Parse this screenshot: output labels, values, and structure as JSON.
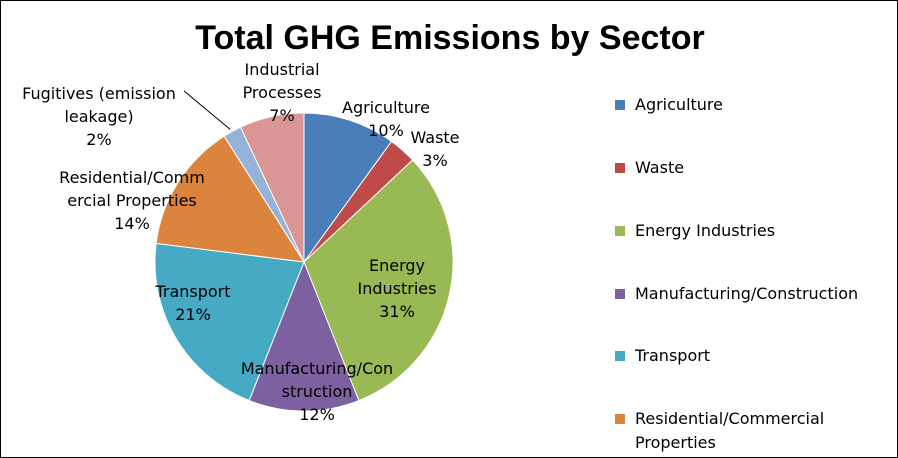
{
  "chart_data": {
    "type": "pie",
    "title": "Total GHG Emissions by Sector",
    "slices": [
      {
        "name": "Agriculture",
        "value": 10,
        "label_lines": [
          "Agriculture",
          "10%"
        ],
        "color": "#4A7EBB"
      },
      {
        "name": "Waste",
        "value": 3,
        "label_lines": [
          "Waste",
          "3%"
        ],
        "color": "#BE4B48"
      },
      {
        "name": "Energy Industries",
        "value": 31,
        "label_lines": [
          "Energy",
          "Industries",
          "31%"
        ],
        "color": "#98B954"
      },
      {
        "name": "Manufacturing/Construction",
        "value": 12,
        "label_lines": [
          "Manufacturing/Con",
          "struction",
          "12%"
        ],
        "color": "#7D60A0"
      },
      {
        "name": "Transport",
        "value": 21,
        "label_lines": [
          "Transport",
          "21%"
        ],
        "color": "#46AAC5"
      },
      {
        "name": "Residential/Commercial Properties",
        "value": 14,
        "label_lines": [
          "Residential/Comm",
          "ercial Properties",
          "14%"
        ],
        "color": "#DB843D"
      },
      {
        "name": "Fugitives (emission leakage)",
        "value": 2,
        "label_lines": [
          "Fugitives (emission",
          "leakage)",
          "2%"
        ],
        "color": "#95B3D7"
      },
      {
        "name": "Industrial Processes",
        "value": 7,
        "label_lines": [
          "Industrial",
          "Processes",
          "7%"
        ],
        "color": "#D99694"
      }
    ],
    "legend": {
      "placement": "right",
      "entries": [
        {
          "label": "Agriculture",
          "color": "#4A7EBB"
        },
        {
          "label": "Waste",
          "color": "#BE4B48"
        },
        {
          "label": "Energy Industries",
          "color": "#98B954"
        },
        {
          "label": "Manufacturing/Construction",
          "color": "#7D60A0"
        },
        {
          "label": "Transport",
          "color": "#46AAC5"
        },
        {
          "label": "Residential/Commercial Properties",
          "color": "#DB843D"
        }
      ]
    }
  }
}
